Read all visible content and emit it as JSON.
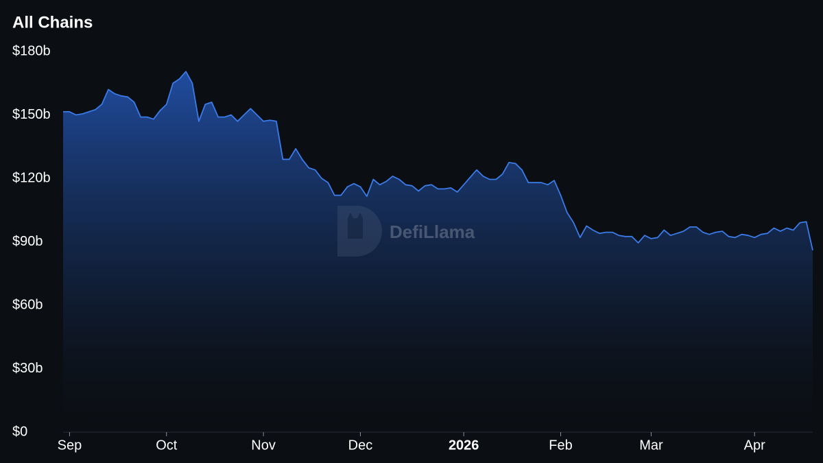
{
  "chart_data": {
    "type": "area",
    "title": "All Chains",
    "watermark": "DefiLlama",
    "color": "#3b7be8",
    "grid": false,
    "ylim": [
      0,
      180
    ],
    "yticks": [
      {
        "value": 0,
        "label": "$0"
      },
      {
        "value": 30,
        "label": "$30b"
      },
      {
        "value": 60,
        "label": "$60b"
      },
      {
        "value": 90,
        "label": "$90b"
      },
      {
        "value": 120,
        "label": "$120b"
      },
      {
        "value": 150,
        "label": "$150b"
      },
      {
        "value": 180,
        "label": "$180b"
      }
    ],
    "categories": [
      null,
      "Sep",
      null,
      null,
      null,
      null,
      null,
      null,
      null,
      null,
      null,
      null,
      null,
      null,
      null,
      null,
      "Oct",
      null,
      null,
      null,
      null,
      null,
      null,
      null,
      null,
      null,
      null,
      null,
      null,
      null,
      null,
      "Nov",
      null,
      null,
      null,
      null,
      null,
      null,
      null,
      null,
      null,
      null,
      null,
      null,
      null,
      null,
      "Dec",
      null,
      null,
      null,
      null,
      null,
      null,
      null,
      null,
      null,
      null,
      null,
      null,
      null,
      null,
      null,
      "2026",
      null,
      null,
      null,
      null,
      null,
      null,
      null,
      null,
      null,
      null,
      null,
      null,
      null,
      null,
      "Feb",
      null,
      null,
      null,
      null,
      null,
      null,
      null,
      null,
      null,
      null,
      null,
      null,
      null,
      "Mar",
      null,
      null,
      null,
      null,
      null,
      null,
      null,
      null,
      null,
      null,
      null,
      null,
      null,
      null,
      null,
      "Apr",
      null,
      null,
      null,
      null,
      null,
      null,
      null,
      null,
      null
    ],
    "values": [
      151.5,
      151.5,
      150,
      150.5,
      151.5,
      152.5,
      155,
      162,
      160,
      159,
      158.5,
      156,
      149,
      149,
      148,
      152,
      155,
      165,
      167,
      170.5,
      165,
      147,
      155,
      156,
      149,
      149,
      150,
      147,
      150,
      153,
      150,
      147,
      147.5,
      147,
      129,
      129,
      134,
      129,
      125,
      124,
      120,
      118,
      112,
      112,
      116,
      117.5,
      116,
      111.5,
      119.5,
      117,
      118.5,
      121,
      119.5,
      117,
      116.5,
      114,
      116.5,
      117,
      115,
      115,
      115.5,
      113.5,
      117,
      120.5,
      124,
      121,
      119.5,
      119.5,
      122,
      127.5,
      127,
      124,
      118,
      118,
      118,
      117,
      119,
      112,
      103.8,
      99,
      92,
      97.5,
      95.5,
      94,
      94.5,
      94.5,
      93,
      92.5,
      92.5,
      89.5,
      93,
      91.5,
      92,
      95.5,
      93,
      94,
      95,
      97,
      97,
      94.5,
      93.5,
      94.5,
      95,
      92.5,
      92,
      93.5,
      93,
      92,
      93.5,
      94,
      96.5,
      95,
      96.5,
      95.5,
      99,
      99.5,
      86
    ]
  }
}
